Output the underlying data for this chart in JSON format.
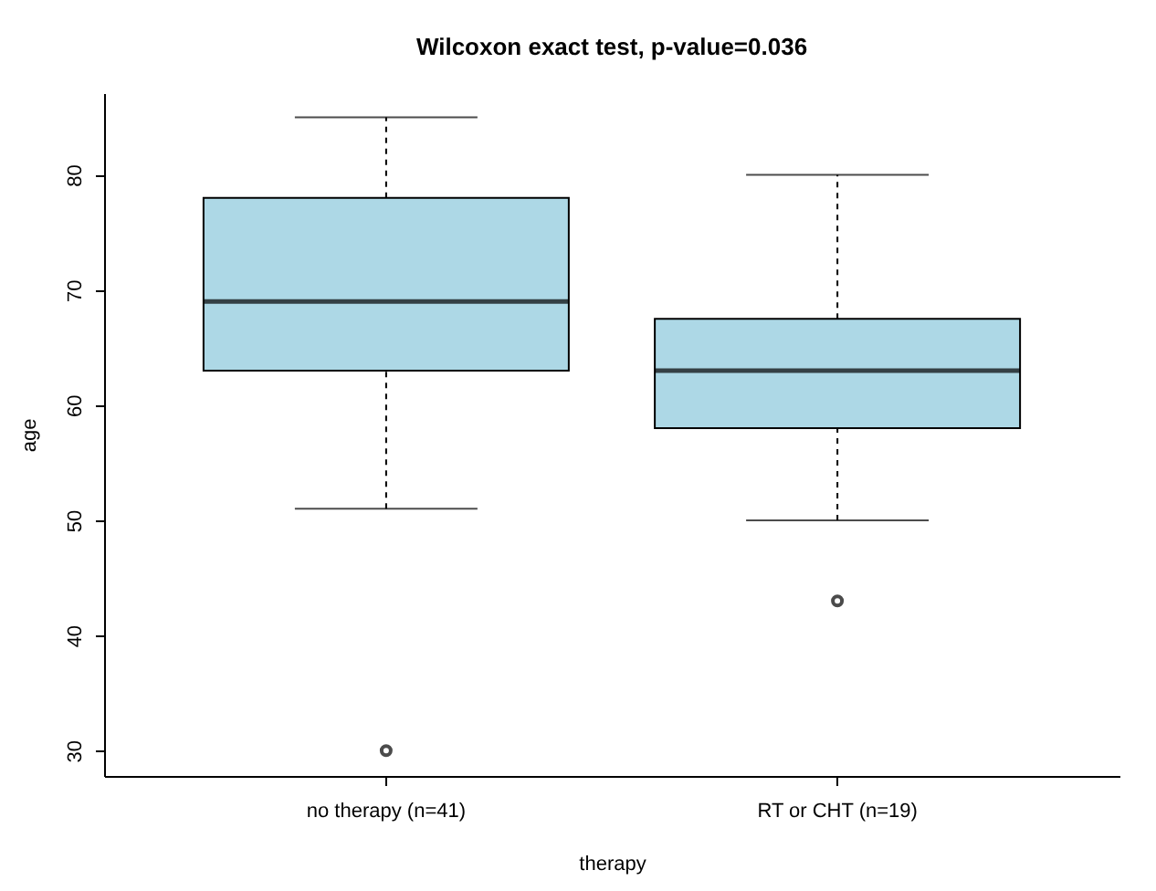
{
  "chart_data": {
    "type": "box",
    "title": "Wilcoxon exact test, p-value=0.036",
    "xlabel": "therapy",
    "ylabel": "age",
    "categories": [
      "no therapy (n=41)",
      "RT or CHT (n=19)"
    ],
    "color": "#add8e6",
    "boxes": [
      {
        "low": 51,
        "q1": 63,
        "median": 69,
        "q3": 78,
        "high": 85,
        "outliers": [
          30
        ]
      },
      {
        "low": 50,
        "q1": 58,
        "median": 63,
        "q3": 67.5,
        "high": 80,
        "outliers": [
          43
        ]
      }
    ],
    "ylim": [
      27.8,
      87.1
    ],
    "yticks": [
      30,
      40,
      50,
      60,
      70,
      80
    ],
    "grid": false
  }
}
